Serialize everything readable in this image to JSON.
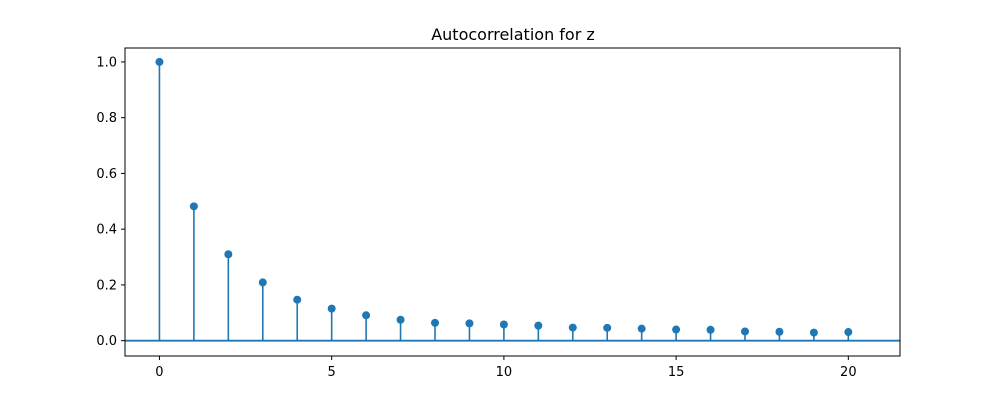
{
  "chart_data": {
    "type": "stem",
    "title": "Autocorrelation for z",
    "xlabel": "",
    "ylabel": "",
    "x": [
      0,
      1,
      2,
      3,
      4,
      5,
      6,
      7,
      8,
      9,
      10,
      11,
      12,
      13,
      14,
      15,
      16,
      17,
      18,
      19,
      20
    ],
    "values": [
      1.0,
      0.482,
      0.31,
      0.209,
      0.147,
      0.115,
      0.091,
      0.075,
      0.064,
      0.062,
      0.058,
      0.054,
      0.047,
      0.046,
      0.043,
      0.04,
      0.039,
      0.033,
      0.032,
      0.029,
      0.031
    ],
    "xlim": [
      -1,
      21.5
    ],
    "ylim": [
      -0.055,
      1.05
    ],
    "xticks": [
      0,
      5,
      10,
      15,
      20
    ],
    "xtick_labels": [
      "0",
      "5",
      "10",
      "15",
      "20"
    ],
    "yticks": [
      0.0,
      0.2,
      0.4,
      0.6,
      0.8,
      1.0
    ],
    "ytick_labels": [
      "0.0",
      "0.2",
      "0.4",
      "0.6",
      "0.8",
      "1.0"
    ],
    "baseline": 0,
    "grid": false,
    "color": "#1f77b4"
  }
}
